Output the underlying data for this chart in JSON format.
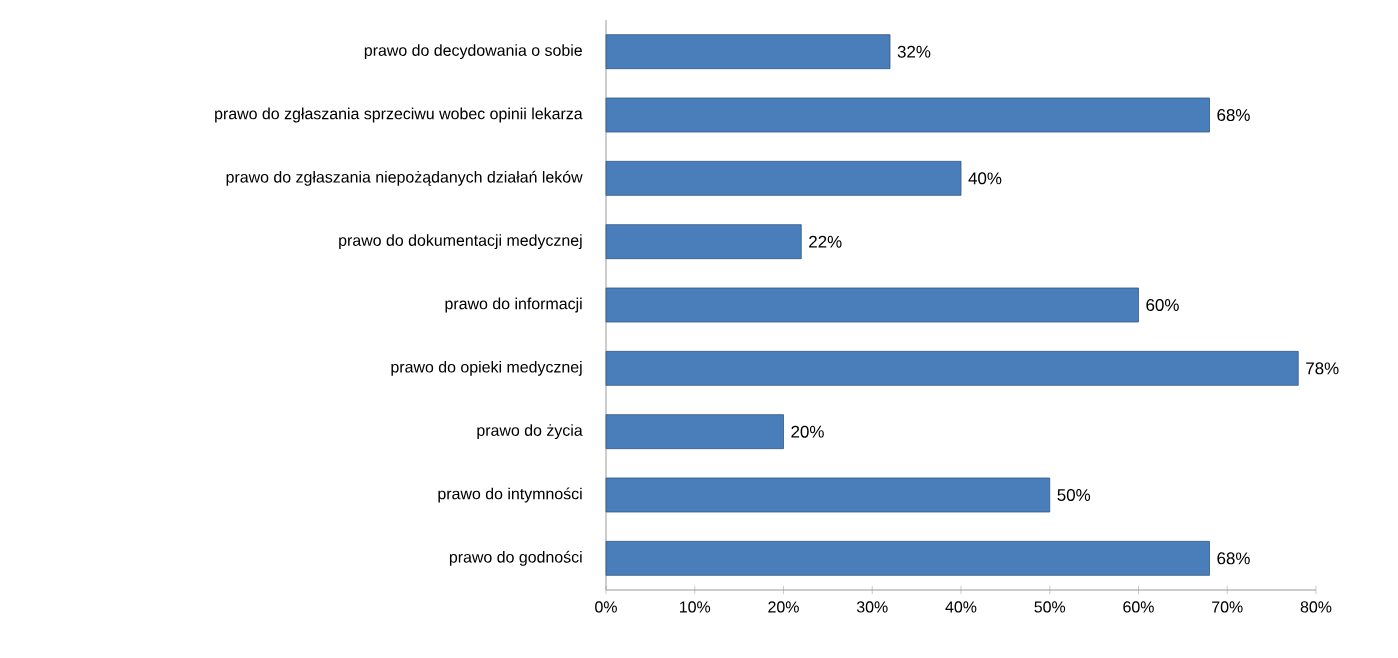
{
  "chart_data": {
    "type": "bar",
    "orientation": "horizontal",
    "categories": [
      "prawo do decydowania o sobie",
      "prawo do zgłaszania sprzeciwu wobec opinii lekarza",
      "prawo do zgłaszania niepożądanych działań leków",
      "prawo do dokumentacji medycznej",
      "prawo do informacji",
      "prawo do opieki medycznej",
      "prawo do życia",
      "prawo do intymności",
      "prawo do godności"
    ],
    "values": [
      32,
      68,
      40,
      22,
      60,
      78,
      20,
      50,
      68
    ],
    "value_labels": [
      "32%",
      "68%",
      "40%",
      "22%",
      "60%",
      "78%",
      "20%",
      "50%",
      "68%"
    ],
    "color": "#4a7ebb",
    "xlim": [
      0,
      80
    ],
    "xticks": [
      {
        "value": 0,
        "label": "0%"
      },
      {
        "value": 10,
        "label": "10%"
      },
      {
        "value": 20,
        "label": "20%"
      },
      {
        "value": 30,
        "label": "30%"
      },
      {
        "value": 40,
        "label": "40%"
      },
      {
        "value": 50,
        "label": "50%"
      },
      {
        "value": 60,
        "label": "60%"
      },
      {
        "value": 70,
        "label": "70%"
      },
      {
        "value": 80,
        "label": "80%"
      }
    ],
    "grid": false
  }
}
